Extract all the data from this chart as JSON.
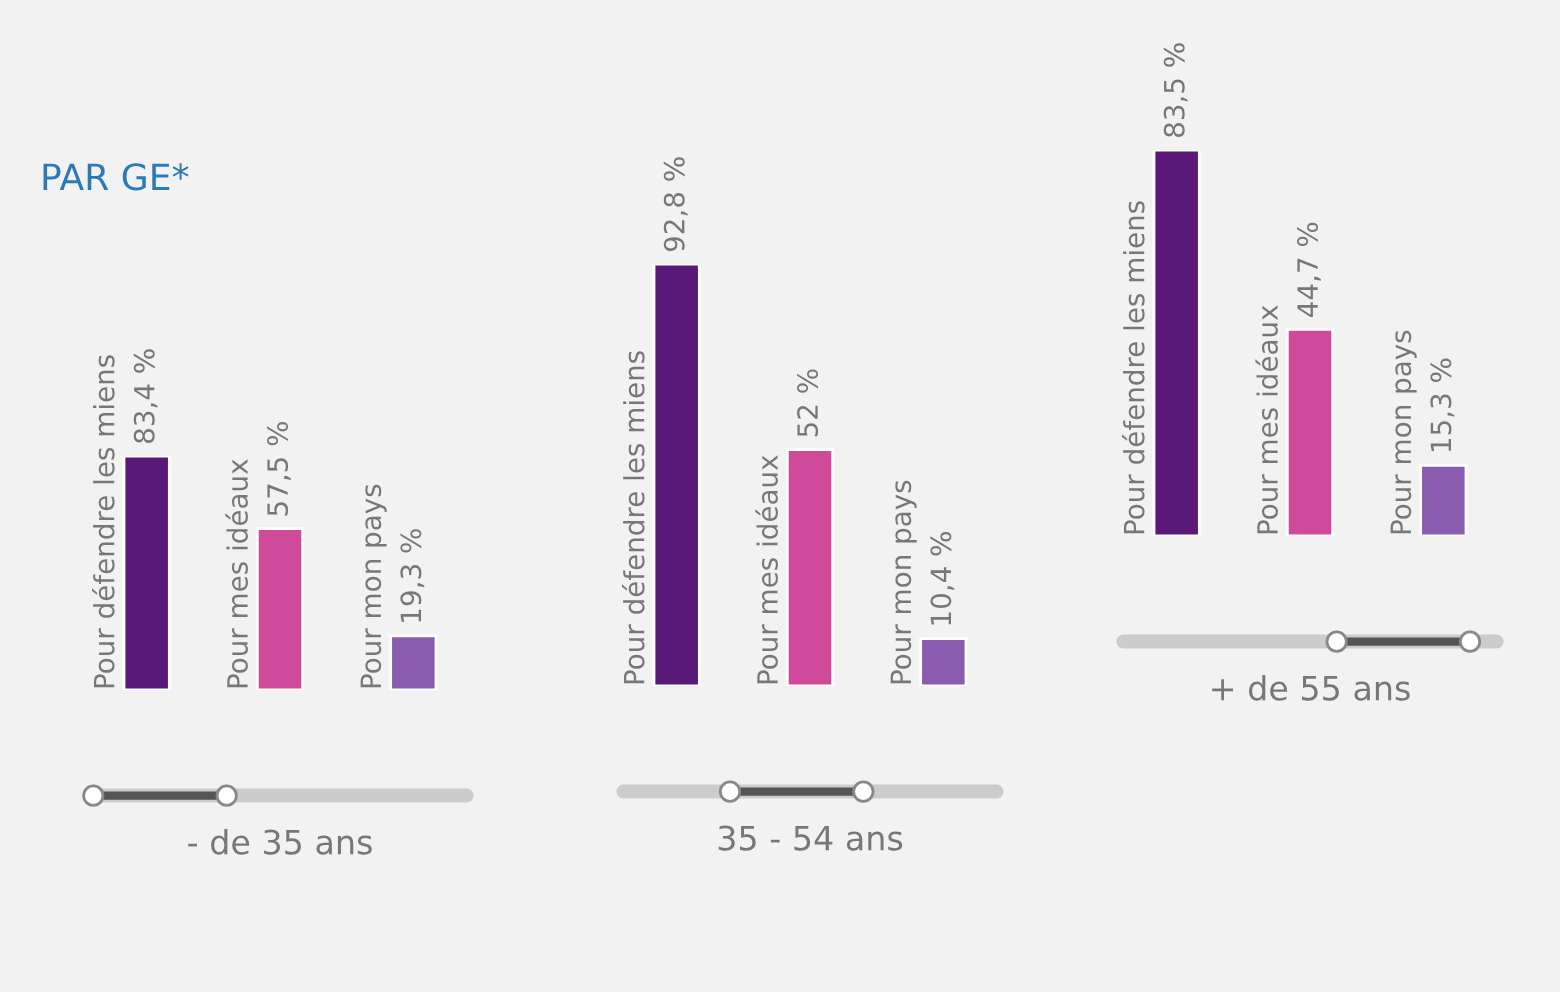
{
  "chart_data": [
    {
      "type": "bar",
      "title": "PAR GE*",
      "xlabel": "- de 35 ans",
      "categories": [
        "Pour défendre les miens",
        "Pour mes idéaux",
        "Pour mon pays"
      ],
      "values": [
        83.4,
        57.5,
        19.3
      ],
      "value_labels": [
        "83,4 %",
        "57,5 %",
        "19,3 %"
      ],
      "colors": [
        "#5a1878",
        "#d04a9c",
        "#8a5cb0"
      ]
    },
    {
      "type": "bar",
      "xlabel": "35 - 54 ans",
      "categories": [
        "Pour défendre les miens",
        "Pour mes idéaux",
        "Pour mon pays"
      ],
      "values": [
        92.8,
        52,
        10.4
      ],
      "value_labels": [
        "92,8 %",
        "52 %",
        "10,4 %"
      ],
      "colors": [
        "#5a1878",
        "#d04a9c",
        "#8a5cb0"
      ]
    },
    {
      "type": "bar",
      "xlabel": "+ de 55 ans",
      "categories": [
        "Pour défendre les miens",
        "Pour mes idéaux",
        "Pour mon pays"
      ],
      "values": [
        83.5,
        44.7,
        15.3
      ],
      "value_labels": [
        "83,5 %",
        "44,7 %",
        "15,3 %"
      ],
      "colors": [
        "#5a1878",
        "#d04a9c",
        "#8a5cb0"
      ]
    }
  ]
}
